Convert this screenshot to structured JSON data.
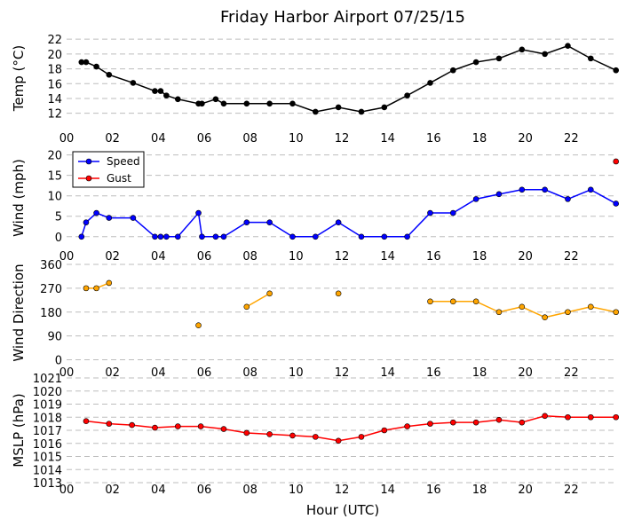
{
  "figure": {
    "title": "Friday Harbor Airport 07/25/15",
    "xlabel": "Hour (UTC)"
  },
  "chart_data": [
    {
      "type": "line",
      "ylabel": "Temp ($^\\circ$C)",
      "ylabel_display": "Temp (°C)",
      "xlim": [
        0,
        24
      ],
      "ylim": [
        11,
        22.5
      ],
      "yticks": [
        12,
        14,
        16,
        18,
        20,
        22
      ],
      "xticks": [
        "00",
        "02",
        "04",
        "06",
        "08",
        "10",
        "12",
        "14",
        "16",
        "18",
        "20",
        "22"
      ],
      "grid": "horizontal-dashed",
      "series": [
        {
          "color": "#000000",
          "connect": true,
          "x": [
            0.65,
            0.85,
            1.3,
            1.85,
            2.9,
            3.85,
            4.1,
            4.35,
            4.85,
            5.75,
            5.9,
            6.5,
            6.85,
            7.85,
            8.85,
            9.85,
            10.85,
            11.85,
            12.85,
            13.85,
            14.85,
            15.85,
            16.85,
            17.85,
            18.85,
            19.85,
            20.85,
            21.85,
            22.85,
            23.95
          ],
          "y": [
            18.9,
            18.9,
            18.3,
            17.2,
            16.1,
            15.0,
            15.0,
            14.4,
            13.9,
            13.3,
            13.3,
            13.9,
            13.3,
            13.3,
            13.3,
            13.3,
            12.2,
            12.8,
            12.2,
            12.8,
            14.4,
            16.1,
            17.8,
            18.9,
            19.4,
            20.6,
            20.0,
            21.1,
            19.4,
            17.8
          ]
        }
      ]
    },
    {
      "type": "line",
      "ylabel": "Wind (mph)",
      "xlim": [
        0,
        24
      ],
      "ylim": [
        -2,
        21
      ],
      "yticks": [
        0,
        5,
        10,
        15,
        20
      ],
      "xticks": [
        "00",
        "02",
        "04",
        "06",
        "08",
        "10",
        "12",
        "14",
        "16",
        "18",
        "20",
        "22"
      ],
      "grid": "horizontal-dashed",
      "legend": "top-left",
      "series": [
        {
          "name": "Speed",
          "color": "#0000ff",
          "connect": true,
          "x": [
            0.65,
            0.85,
            1.3,
            1.85,
            2.9,
            3.85,
            4.1,
            4.35,
            4.85,
            5.75,
            5.9,
            6.5,
            6.85,
            7.85,
            8.85,
            9.85,
            10.85,
            11.85,
            12.85,
            13.85,
            14.85,
            15.85,
            16.85,
            17.85,
            18.85,
            19.85,
            20.85,
            21.85,
            22.85,
            23.95
          ],
          "y": [
            0,
            3.5,
            5.8,
            4.6,
            4.6,
            0,
            0,
            0,
            0,
            5.8,
            0,
            0,
            0,
            3.5,
            3.5,
            0,
            0,
            3.5,
            0,
            0,
            0,
            5.8,
            5.8,
            9.2,
            10.4,
            11.5,
            11.5,
            9.2,
            11.5,
            8.1
          ]
        },
        {
          "name": "Gust",
          "color": "#ff0000",
          "connect": false,
          "x": [
            23.95
          ],
          "y": [
            18.4
          ]
        }
      ]
    },
    {
      "type": "scatter",
      "ylabel": "Wind Direction",
      "xlim": [
        0,
        24
      ],
      "ylim": [
        -15,
        370
      ],
      "yticks": [
        0,
        90,
        180,
        270,
        360
      ],
      "xticks": [
        "00",
        "02",
        "04",
        "06",
        "08",
        "10",
        "12",
        "14",
        "16",
        "18",
        "20",
        "22"
      ],
      "grid": "horizontal-dashed",
      "series": [
        {
          "color": "#ffa500",
          "connect": "consecutive-hours",
          "x": [
            0.85,
            1.3,
            1.85,
            5.75,
            7.85,
            8.85,
            11.85,
            15.85,
            16.85,
            17.85,
            18.85,
            19.85,
            20.85,
            21.85,
            22.85,
            23.95
          ],
          "y": [
            270,
            270,
            290,
            130,
            200,
            250,
            250,
            220,
            220,
            220,
            180,
            200,
            160,
            180,
            200,
            180
          ]
        }
      ]
    },
    {
      "type": "line",
      "ylabel": "MSLP (hPa)",
      "xlim": [
        0,
        24
      ],
      "ylim": [
        1013,
        1021
      ],
      "yticks": [
        1013,
        1014,
        1015,
        1016,
        1017,
        1018,
        1019,
        1020,
        1021
      ],
      "xticks": [
        "00",
        "02",
        "04",
        "06",
        "08",
        "10",
        "12",
        "14",
        "16",
        "18",
        "20",
        "22"
      ],
      "grid": "horizontal-dashed",
      "series": [
        {
          "color": "#ff0000",
          "connect": true,
          "x": [
            0.85,
            1.85,
            2.85,
            3.85,
            4.85,
            5.85,
            6.85,
            7.85,
            8.85,
            9.85,
            10.85,
            11.85,
            12.85,
            13.85,
            14.85,
            15.85,
            16.85,
            17.85,
            18.85,
            19.85,
            20.85,
            21.85,
            22.85,
            23.95
          ],
          "y": [
            1017.7,
            1017.5,
            1017.4,
            1017.2,
            1017.3,
            1017.3,
            1017.1,
            1016.8,
            1016.7,
            1016.6,
            1016.5,
            1016.2,
            1016.5,
            1017.0,
            1017.3,
            1017.5,
            1017.6,
            1017.6,
            1017.8,
            1017.6,
            1018.1,
            1018.0,
            1018.0,
            1018.0
          ]
        }
      ]
    }
  ]
}
